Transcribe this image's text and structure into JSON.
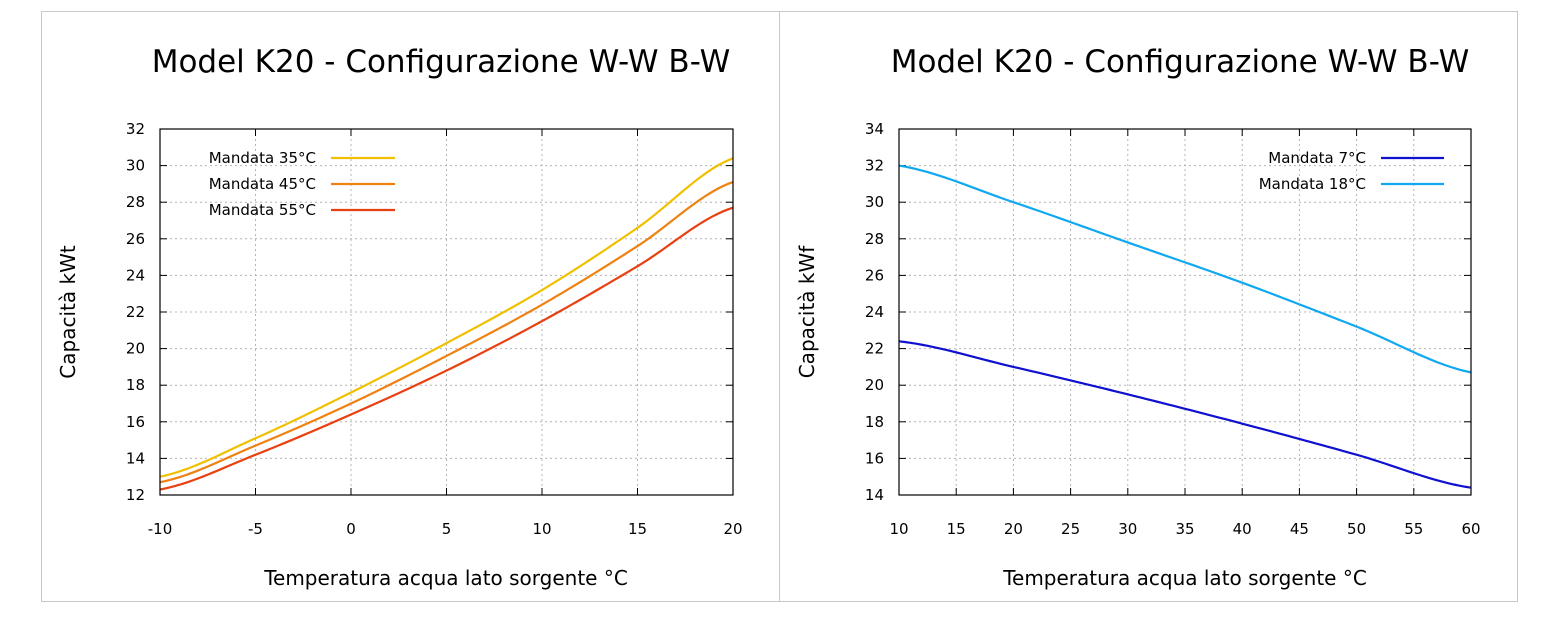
{
  "chart_data": [
    {
      "type": "line",
      "title": "Model K20 - Configurazione W-W B-W",
      "xlabel": "Temperatura acqua lato sorgente °C",
      "ylabel": "Capacità kWt",
      "xlim": [
        -10,
        20
      ],
      "ylim": [
        12,
        32
      ],
      "xticks": [
        -10,
        -5,
        0,
        5,
        10,
        15,
        20
      ],
      "yticks": [
        12,
        14,
        16,
        18,
        20,
        22,
        24,
        26,
        28,
        30,
        32
      ],
      "grid": true,
      "legend_position": "top-left",
      "x": [
        -10,
        -5,
        0,
        5,
        10,
        15,
        20
      ],
      "series": [
        {
          "name": "Mandata 35°C",
          "color": "#f0c000",
          "values": [
            13.0,
            15.1,
            17.6,
            20.3,
            23.2,
            26.6,
            30.4
          ]
        },
        {
          "name": "Mandata 45°C",
          "color": "#f08010",
          "values": [
            12.7,
            14.7,
            17.0,
            19.6,
            22.4,
            25.6,
            29.1
          ]
        },
        {
          "name": "Mandata 55°C",
          "color": "#e84010",
          "values": [
            12.3,
            14.2,
            16.4,
            18.8,
            21.5,
            24.5,
            27.7
          ]
        }
      ]
    },
    {
      "type": "line",
      "title": "Model K20 - Configurazione W-W B-W",
      "xlabel": "Temperatura acqua lato sorgente °C",
      "ylabel": "Capacità kWf",
      "xlim": [
        10,
        60
      ],
      "ylim": [
        14,
        34
      ],
      "xticks": [
        10,
        15,
        20,
        25,
        30,
        35,
        40,
        45,
        50,
        55,
        60
      ],
      "yticks": [
        14,
        16,
        18,
        20,
        22,
        24,
        26,
        28,
        30,
        32,
        34
      ],
      "grid": true,
      "legend_position": "top-right",
      "x": [
        10,
        20,
        30,
        40,
        50,
        60
      ],
      "series": [
        {
          "name": "Mandata 7°C",
          "color": "#1010d0",
          "values": [
            22.4,
            21.0,
            19.5,
            17.9,
            16.2,
            14.4
          ]
        },
        {
          "name": "Mandata 18°C",
          "color": "#10a8f0",
          "values": [
            32.0,
            30.0,
            27.8,
            25.6,
            23.2,
            20.7
          ]
        }
      ]
    }
  ]
}
